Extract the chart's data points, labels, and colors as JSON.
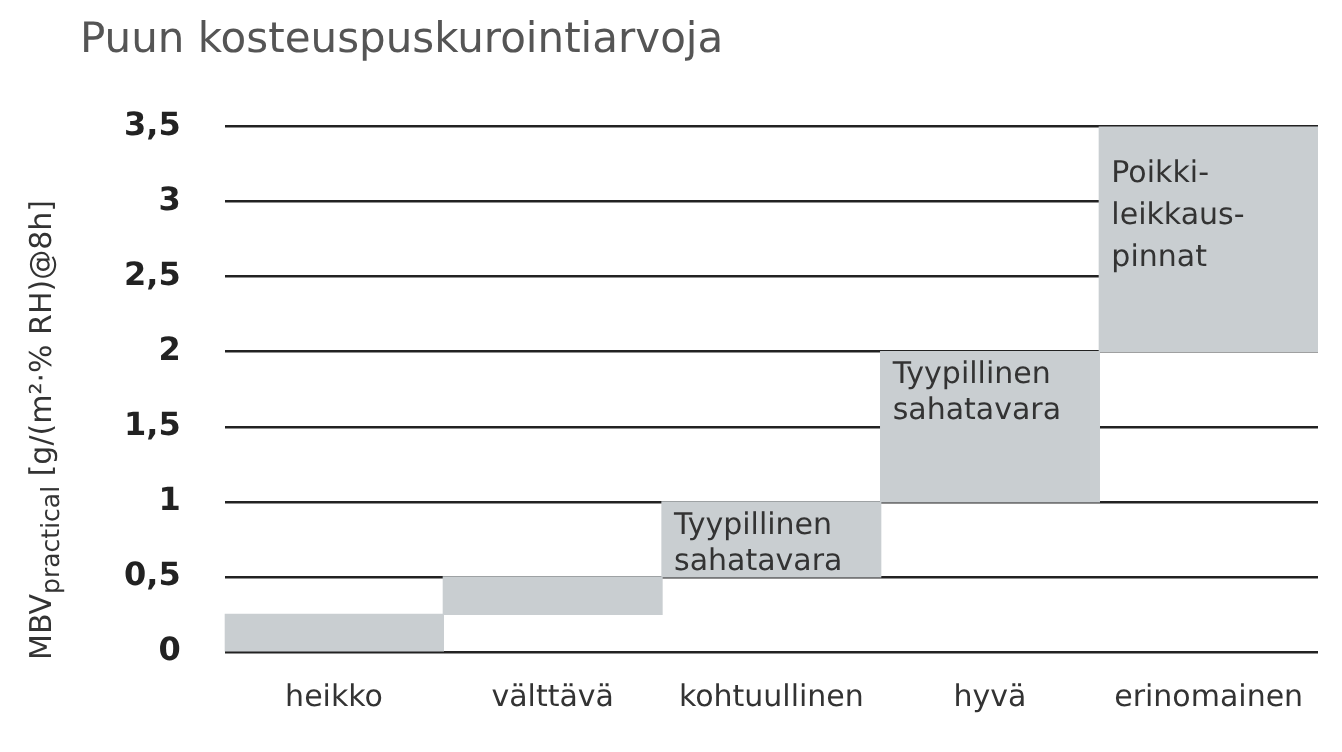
{
  "chart_data": {
    "type": "bar",
    "title": "Puun kosteuspuskurointiarvoja",
    "ylabel": "MBV$_{practical}$ [g/(m²·% RH)@8h]",
    "categories": [
      "heikko",
      "välttävä",
      "kohtuullinen",
      "hyvä",
      "erinomainen"
    ],
    "values": [
      0.25,
      0.25,
      0.5,
      1.0,
      1.5
    ],
    "base": [
      0,
      0.25,
      0.5,
      1.0,
      2.0
    ],
    "color": "#c9ced1",
    "ylim": [
      0,
      3.5
    ],
    "yticks": [
      0,
      {
        "value": 0.5,
        "label": "0,5"
      },
      1,
      {
        "value": 1.5,
        "label": "1,5"
      },
      2,
      {
        "value": 2.5,
        "label": "2,5"
      },
      3,
      {
        "value": 3.5,
        "label": "3,5"
      }
    ],
    "grid": "y",
    "annotations": [
      {
        "text": "Tyypillinen\nsahatavara",
        "x": "kohtuullinen",
        "y": 1.0
      },
      {
        "text": "Tyypillinen\nsahatavara",
        "x": "hyvä",
        "y": 2.0
      },
      {
        "text": "Poikki-\nleikkaus-\npinnat",
        "x": "erinomainen",
        "y": 3.5
      }
    ]
  }
}
